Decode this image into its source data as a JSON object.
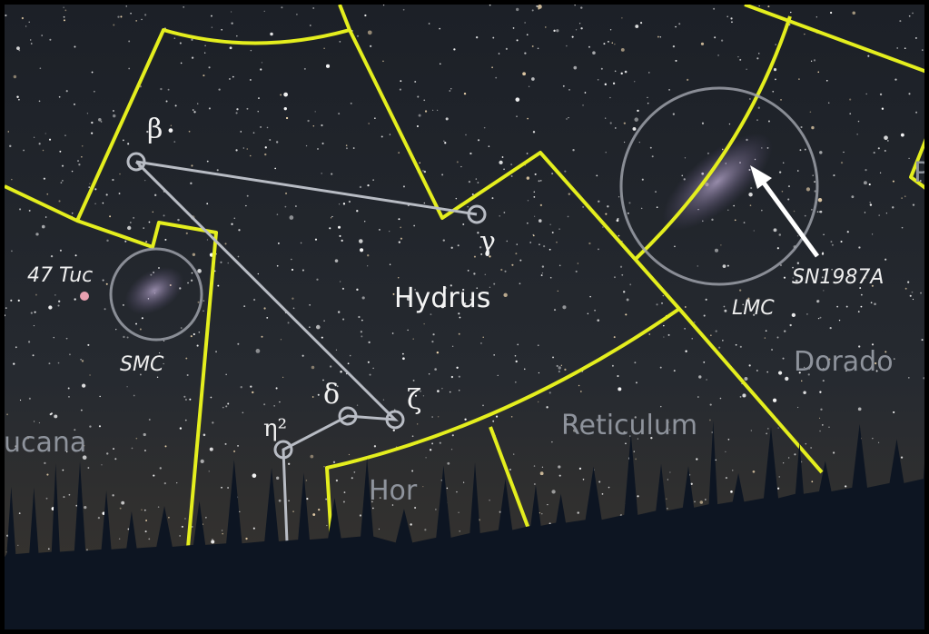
{
  "labels": {
    "stars": [
      "β",
      "γ",
      "δ",
      "ζ",
      "η²"
    ],
    "constellations": [
      "Hydrus",
      "Dorado",
      "Reticulum",
      "Hor",
      "ucana",
      "P"
    ],
    "objects": [
      "47 Tuc",
      "SMC",
      "LMC",
      "SN1987A"
    ]
  }
}
